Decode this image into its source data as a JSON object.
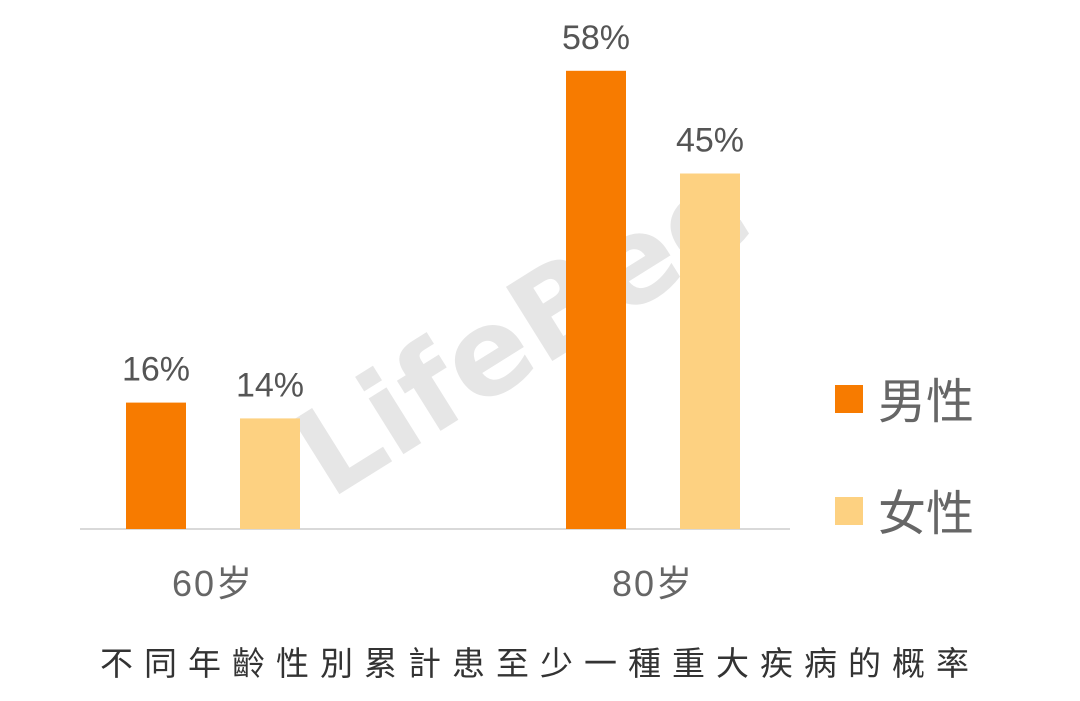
{
  "chart_data": {
    "type": "bar",
    "title": "不同年齡性別累計患至少一種重大疾病的概率",
    "categories": [
      "60岁",
      "80岁"
    ],
    "series": [
      {
        "name": "男性",
        "values": [
          16,
          58
        ],
        "color": "#F77B00"
      },
      {
        "name": "女性",
        "values": [
          14,
          45
        ],
        "color": "#FDD181"
      }
    ],
    "value_suffix": "%",
    "ylim": [
      0,
      60
    ],
    "grid": false,
    "y_axis_visible": false,
    "legend_position": "right",
    "xlabel": "",
    "ylabel": ""
  },
  "watermark": "LifeBee"
}
